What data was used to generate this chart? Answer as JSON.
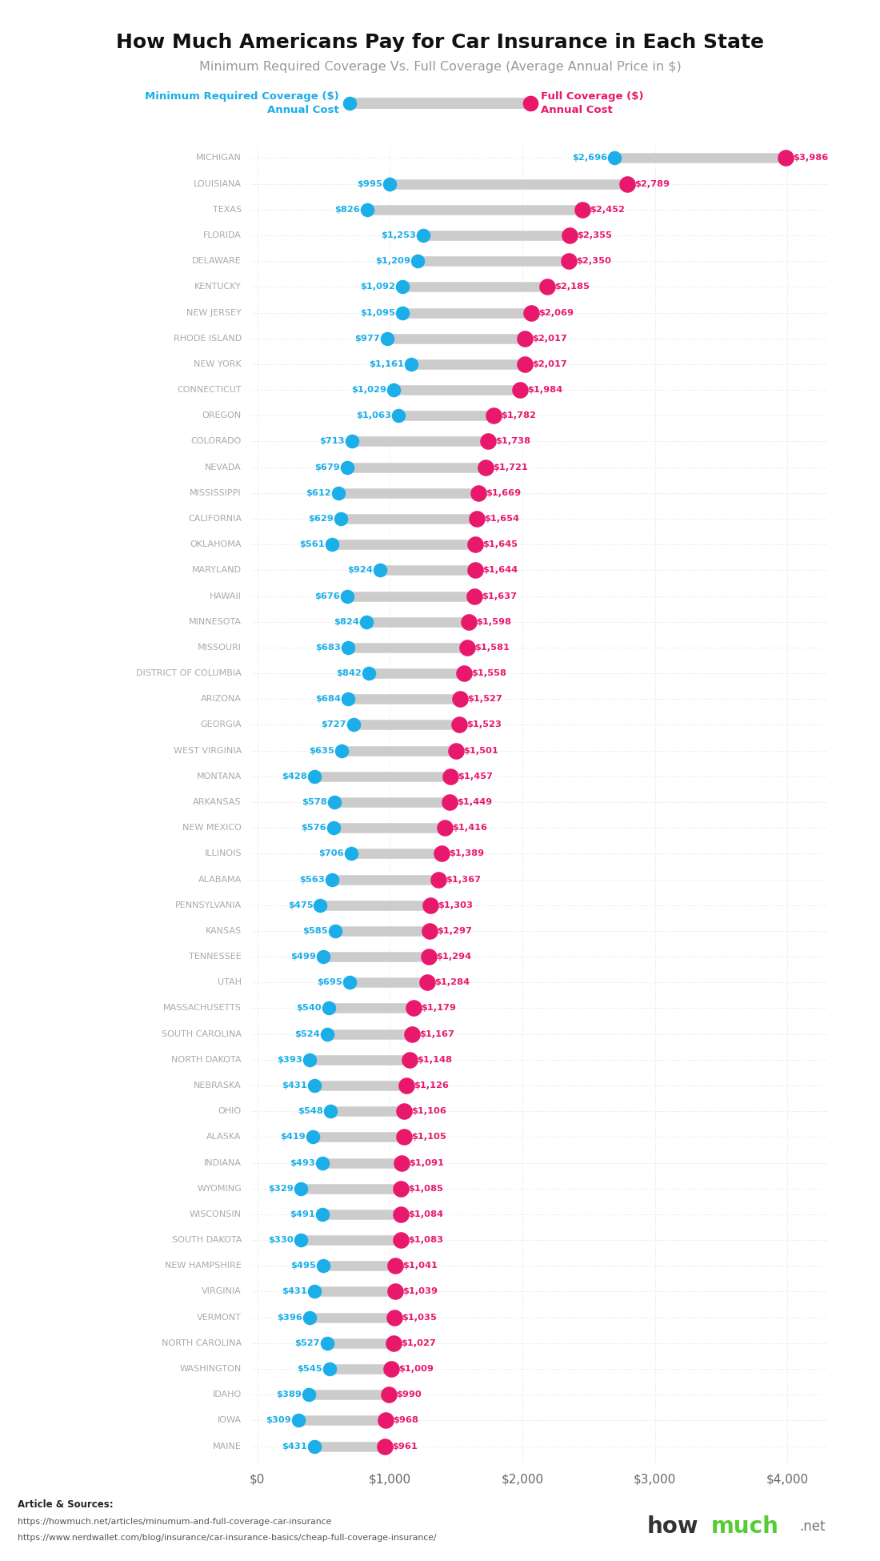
{
  "title": "How Much Americans Pay for Car Insurance in Each State",
  "subtitle": "Minimum Required Coverage Vs. Full Coverage (Average Annual Price in $)",
  "states": [
    "MICHIGAN",
    "LOUISIANA",
    "TEXAS",
    "FLORIDA",
    "DELAWARE",
    "KENTUCKY",
    "NEW JERSEY",
    "RHODE ISLAND",
    "NEW YORK",
    "CONNECTICUT",
    "OREGON",
    "COLORADO",
    "NEVADA",
    "MISSISSIPPI",
    "CALIFORNIA",
    "OKLAHOMA",
    "MARYLAND",
    "HAWAII",
    "MINNESOTA",
    "MISSOURI",
    "DISTRICT OF COLUMBIA",
    "ARIZONA",
    "GEORGIA",
    "WEST VIRGINIA",
    "MONTANA",
    "ARKANSAS",
    "NEW MEXICO",
    "ILLINOIS",
    "ALABAMA",
    "PENNSYLVANIA",
    "KANSAS",
    "TENNESSEE",
    "UTAH",
    "MASSACHUSETTS",
    "SOUTH CAROLINA",
    "NORTH DAKOTA",
    "NEBRASKA",
    "OHIO",
    "ALASKA",
    "INDIANA",
    "WYOMING",
    "WISCONSIN",
    "SOUTH DAKOTA",
    "NEW HAMPSHIRE",
    "VIRGINIA",
    "VERMONT",
    "NORTH CAROLINA",
    "WASHINGTON",
    "IDAHO",
    "IOWA",
    "MAINE"
  ],
  "min_coverage": [
    2696,
    995,
    826,
    1253,
    1209,
    1092,
    1095,
    977,
    1161,
    1029,
    1063,
    713,
    679,
    612,
    629,
    561,
    924,
    676,
    824,
    683,
    842,
    684,
    727,
    635,
    428,
    578,
    576,
    706,
    563,
    475,
    585,
    499,
    695,
    540,
    524,
    393,
    431,
    548,
    419,
    493,
    329,
    491,
    330,
    495,
    431,
    396,
    527,
    545,
    389,
    309,
    431
  ],
  "full_coverage": [
    3986,
    2789,
    2452,
    2355,
    2350,
    2185,
    2069,
    2017,
    2017,
    1984,
    1782,
    1738,
    1721,
    1669,
    1654,
    1645,
    1644,
    1637,
    1598,
    1581,
    1558,
    1527,
    1523,
    1501,
    1457,
    1449,
    1416,
    1389,
    1367,
    1303,
    1297,
    1294,
    1284,
    1179,
    1167,
    1148,
    1126,
    1106,
    1105,
    1091,
    1085,
    1084,
    1083,
    1041,
    1039,
    1035,
    1027,
    1009,
    990,
    968,
    961
  ],
  "min_color": "#1baee8",
  "full_color": "#e8186d",
  "connector_color": "#cccccc",
  "background_color": "#ffffff",
  "label_color_min": "#1baee8",
  "label_color_full": "#e8186d",
  "state_label_color": "#aaaaaa",
  "xticks": [
    0,
    1000,
    2000,
    3000,
    4000
  ],
  "xtick_labels": [
    "$0",
    "$1,000",
    "$2,000",
    "$3,000",
    "$4,000"
  ],
  "article_label": "Article & Sources:",
  "article_sources": [
    "https://howmuch.net/articles/minumum-and-full-coverage-car-insurance",
    "https://www.nerdwallet.com/blog/insurance/car-insurance-basics/cheap-full-coverage-insurance/"
  ]
}
